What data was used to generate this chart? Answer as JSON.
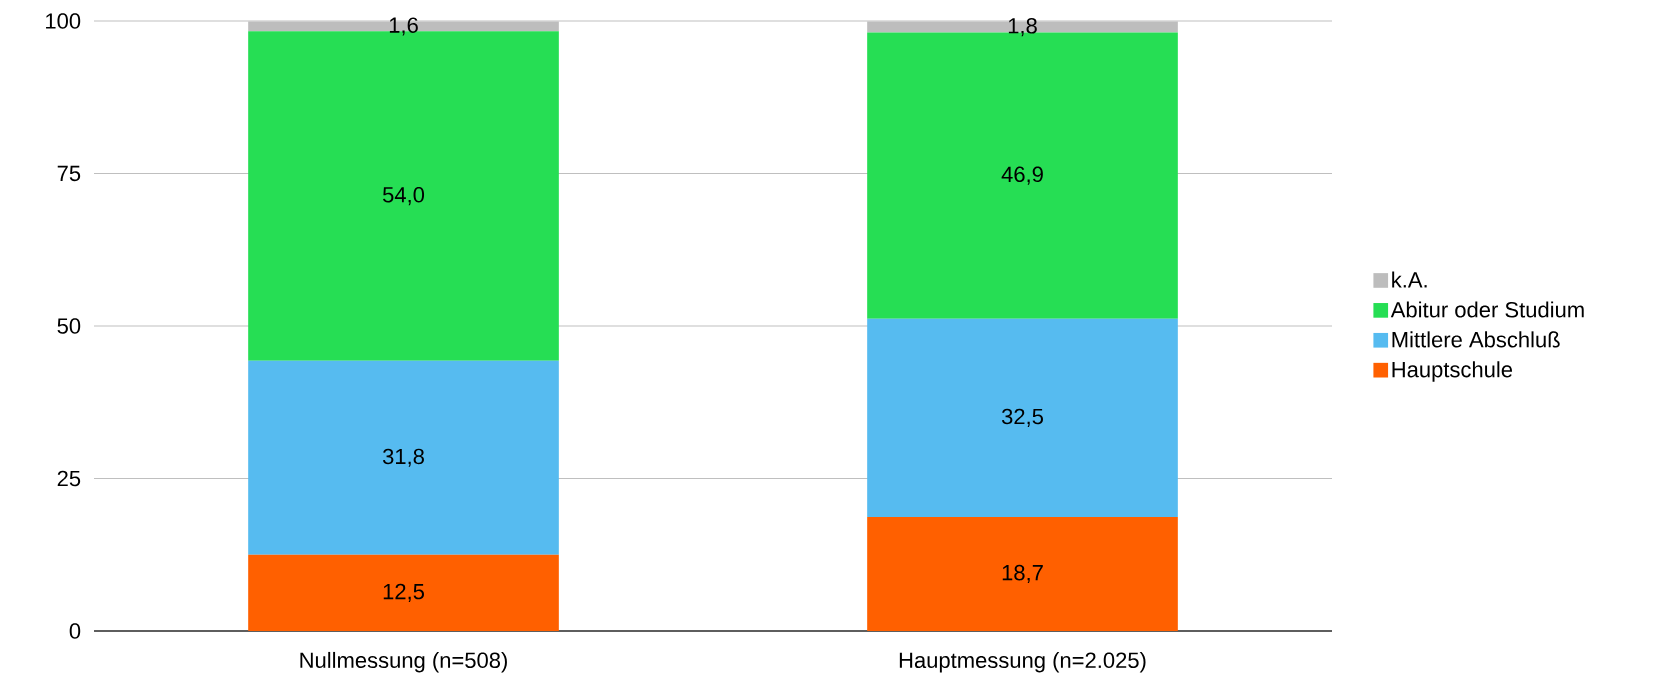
{
  "chart_data": {
    "type": "bar",
    "stacked": true,
    "categories": [
      "Nullmessung (n=508)",
      "Hauptmessung (n=2.025)"
    ],
    "series": [
      {
        "name": "Hauptschule",
        "color": "#ff6000",
        "values": [
          12.5,
          18.7
        ],
        "value_labels": [
          "12,5",
          "18,7"
        ]
      },
      {
        "name": "Mittlere Abschluß",
        "color": "#56bbf0",
        "values": [
          31.8,
          32.5
        ],
        "value_labels": [
          "31,8",
          "32,5"
        ]
      },
      {
        "name": "Abitur oder Studium",
        "color": "#26de54",
        "values": [
          54.0,
          46.9
        ],
        "value_labels": [
          "54,0",
          "46,9"
        ]
      },
      {
        "name": "k.A.",
        "color": "#bdbdbd",
        "values": [
          1.6,
          1.8
        ],
        "value_labels": [
          "1,6",
          "1,8"
        ]
      }
    ],
    "ylim": [
      0,
      100
    ],
    "yticks": [
      0,
      25,
      50,
      75,
      100
    ],
    "grid": "y",
    "legend": "right"
  }
}
